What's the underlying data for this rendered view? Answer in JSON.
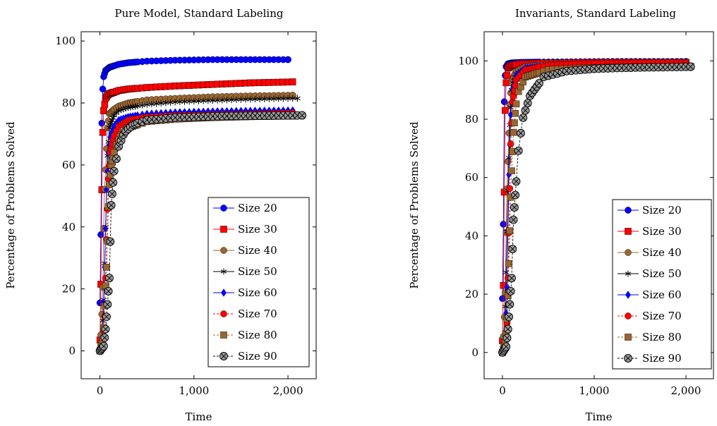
{
  "colors": {
    "blue": "#0000ff",
    "red": "#ff0000",
    "brown": "#996633",
    "black": "#000000"
  },
  "chart_data": [
    {
      "type": "scatter",
      "title": "Pure Model, Standard Labeling",
      "xlabel": "Time",
      "ylabel": "Percentage of Problems Solved",
      "xlim": [
        -200,
        2300
      ],
      "ylim": [
        -9,
        103
      ],
      "xticks": [
        0,
        1000,
        2000
      ],
      "xtick_labels": [
        "0",
        "1,000",
        "2,000"
      ],
      "yticks": [
        0,
        20,
        40,
        60,
        80,
        100
      ],
      "ytick_labels": [
        "0",
        "20",
        "40",
        "60",
        "80",
        "100"
      ],
      "grid": false,
      "legend_position": "bottom-right",
      "series": [
        {
          "name": "Size 20",
          "color": "blue",
          "marker": "circle",
          "dash": "solid",
          "x": [
            0,
            10,
            20,
            30,
            40,
            60,
            80,
            100,
            150,
            200,
            300,
            500,
            800,
            1200,
            1600,
            2000
          ],
          "y": [
            15.5,
            37.5,
            73.5,
            84.5,
            88.5,
            90.5,
            91.0,
            91.5,
            92.0,
            92.5,
            93.0,
            93.5,
            93.8,
            94.0,
            94.0,
            94.0
          ]
        },
        {
          "name": "Size 30",
          "color": "red",
          "marker": "square",
          "dash": "solid",
          "x": [
            0,
            10,
            20,
            30,
            40,
            60,
            80,
            100,
            150,
            200,
            300,
            500,
            800,
            1200,
            1600,
            2050
          ],
          "y": [
            3.5,
            21.5,
            52.0,
            70.5,
            77.5,
            81.5,
            82.5,
            83.0,
            83.5,
            84.0,
            84.5,
            85.0,
            85.5,
            86.0,
            86.5,
            86.8
          ]
        },
        {
          "name": "Size 40",
          "color": "brown",
          "marker": "circle",
          "dash": "solid",
          "x": [
            0,
            15,
            30,
            45,
            60,
            80,
            100,
            150,
            200,
            300,
            500,
            800,
            1200,
            1600,
            2050
          ],
          "y": [
            0.5,
            7.5,
            20.5,
            49.0,
            58.5,
            72.0,
            76.5,
            78.0,
            79.0,
            80.0,
            81.0,
            81.5,
            82.0,
            82.3,
            82.5
          ]
        },
        {
          "name": "Size 50",
          "color": "black",
          "marker": "star",
          "dash": "solid",
          "x": [
            0,
            20,
            40,
            60,
            80,
            100,
            150,
            200,
            300,
            500,
            800,
            1200,
            1600,
            2100
          ],
          "y": [
            0.2,
            3.0,
            16.5,
            40.0,
            63.0,
            72.0,
            76.0,
            77.5,
            78.5,
            79.5,
            80.3,
            80.8,
            81.2,
            81.5
          ]
        },
        {
          "name": "Size 60",
          "color": "blue",
          "marker": "diamond",
          "dash": "solid",
          "x": [
            0,
            30,
            50,
            70,
            90,
            110,
            150,
            200,
            300,
            500,
            800,
            1200,
            1600,
            2050
          ],
          "y": [
            0.1,
            4.5,
            27.0,
            52.0,
            64.0,
            69.0,
            72.5,
            74.5,
            75.5,
            76.5,
            77.0,
            77.3,
            77.5,
            77.6
          ]
        },
        {
          "name": "Size 70",
          "color": "red",
          "marker": "circle",
          "dash": "dashed",
          "x": [
            0,
            30,
            50,
            70,
            90,
            110,
            150,
            200,
            300,
            500,
            800,
            1200,
            1600,
            2050
          ],
          "y": [
            0.0,
            2.0,
            11.0,
            36.0,
            55.5,
            64.0,
            69.5,
            72.5,
            74.5,
            75.5,
            76.0,
            76.3,
            76.5,
            76.8
          ]
        },
        {
          "name": "Size 80",
          "color": "brown",
          "marker": "square",
          "dash": "dashed",
          "x": [
            0,
            35,
            55,
            75,
            95,
            120,
            160,
            220,
            300,
            500,
            800,
            1200,
            1600,
            2050
          ],
          "y": [
            0.0,
            4.0,
            18.0,
            30.0,
            52.0,
            60.0,
            65.5,
            69.5,
            72.0,
            74.0,
            74.8,
            75.3,
            75.6,
            75.8
          ]
        },
        {
          "name": "Size 90",
          "color": "black",
          "marker": "circle-x",
          "dash": "dashed",
          "x": [
            0,
            40,
            60,
            80,
            100,
            120,
            150,
            200,
            260,
            350,
            500,
            800,
            1200,
            1600,
            2150
          ],
          "y": [
            0.0,
            1.5,
            7.0,
            15.0,
            23.5,
            47.0,
            58.0,
            66.0,
            70.5,
            73.0,
            74.5,
            75.3,
            75.7,
            75.9,
            76.0
          ]
        }
      ]
    },
    {
      "type": "scatter",
      "title": "Invariants, Standard Labeling",
      "xlabel": "Time",
      "ylabel": "Percentage of Problems Solved",
      "xlim": [
        -200,
        2300
      ],
      "ylim": [
        -9,
        110
      ],
      "xticks": [
        0,
        1000,
        2000
      ],
      "xtick_labels": [
        "0",
        "1,000",
        "2,000"
      ],
      "yticks": [
        0,
        20,
        40,
        60,
        80,
        100
      ],
      "ytick_labels": [
        "0",
        "20",
        "40",
        "60",
        "80",
        "100"
      ],
      "grid": false,
      "legend_position": "bottom-right",
      "series": [
        {
          "name": "Size 20",
          "color": "blue",
          "marker": "circle",
          "dash": "solid",
          "x": [
            0,
            10,
            20,
            30,
            40,
            60,
            100,
            200,
            400,
            800,
            1200,
            1600,
            2000
          ],
          "y": [
            18.5,
            44.0,
            86.0,
            95.0,
            98.0,
            99.0,
            99.3,
            99.5,
            99.6,
            99.7,
            99.8,
            99.8,
            99.8
          ]
        },
        {
          "name": "Size 30",
          "color": "red",
          "marker": "square",
          "dash": "solid",
          "x": [
            0,
            10,
            20,
            30,
            40,
            60,
            100,
            200,
            400,
            800,
            1200,
            1600,
            2000
          ],
          "y": [
            4.0,
            23.0,
            55.0,
            83.0,
            92.5,
            97.5,
            98.5,
            99.0,
            99.2,
            99.4,
            99.5,
            99.5,
            99.5
          ]
        },
        {
          "name": "Size 40",
          "color": "brown",
          "marker": "circle",
          "dash": "solid",
          "x": [
            0,
            15,
            30,
            45,
            60,
            80,
            100,
            150,
            250,
            500,
            900,
            1300,
            1700,
            2000
          ],
          "y": [
            0.5,
            8.0,
            20.5,
            51.5,
            65.5,
            85.0,
            93.0,
            96.5,
            98.0,
            98.8,
            99.0,
            99.2,
            99.3,
            99.3
          ]
        },
        {
          "name": "Size 50",
          "color": "black",
          "marker": "star",
          "dash": "solid",
          "x": [
            0,
            20,
            40,
            60,
            80,
            100,
            150,
            250,
            500,
            900,
            1300,
            1700,
            2000
          ],
          "y": [
            0.2,
            4.0,
            27.5,
            55.5,
            78.0,
            90.0,
            95.5,
            97.5,
            98.5,
            99.0,
            99.2,
            99.3,
            99.3
          ]
        },
        {
          "name": "Size 60",
          "color": "blue",
          "marker": "diamond",
          "dash": "solid",
          "x": [
            0,
            30,
            50,
            70,
            90,
            110,
            150,
            250,
            500,
            900,
            1300,
            1700,
            2000
          ],
          "y": [
            0.1,
            4.5,
            22.5,
            61.0,
            81.5,
            90.0,
            95.0,
            97.5,
            98.5,
            99.0,
            99.2,
            99.3,
            99.3
          ]
        },
        {
          "name": "Size 70",
          "color": "red",
          "marker": "circle",
          "dash": "dashed",
          "x": [
            0,
            30,
            50,
            70,
            90,
            110,
            150,
            250,
            500,
            900,
            1300,
            1700,
            2000
          ],
          "y": [
            0.0,
            2.0,
            10.0,
            41.0,
            71.5,
            86.0,
            93.5,
            97.0,
            98.5,
            99.0,
            99.2,
            99.3,
            99.3
          ]
        },
        {
          "name": "Size 80",
          "color": "brown",
          "marker": "square",
          "dash": "dashed",
          "x": [
            0,
            35,
            55,
            75,
            95,
            120,
            160,
            250,
            500,
            900,
            1300,
            1700,
            2050
          ],
          "y": [
            0.0,
            4.0,
            14.0,
            36.0,
            59.0,
            75.5,
            88.5,
            94.5,
            97.0,
            97.6,
            97.9,
            98.0,
            98.1
          ]
        },
        {
          "name": "Size 90",
          "color": "black",
          "marker": "circle-x",
          "dash": "dashed",
          "x": [
            0,
            40,
            60,
            80,
            100,
            120,
            140,
            170,
            220,
            300,
            450,
            700,
            1000,
            1300,
            1600,
            1900,
            2050
          ],
          "y": [
            0.0,
            2.0,
            8.0,
            16.5,
            25.5,
            45.5,
            54.0,
            68.0,
            80.0,
            88.0,
            94.5,
            96.5,
            97.3,
            97.6,
            97.8,
            97.9,
            98.0
          ]
        }
      ]
    }
  ]
}
